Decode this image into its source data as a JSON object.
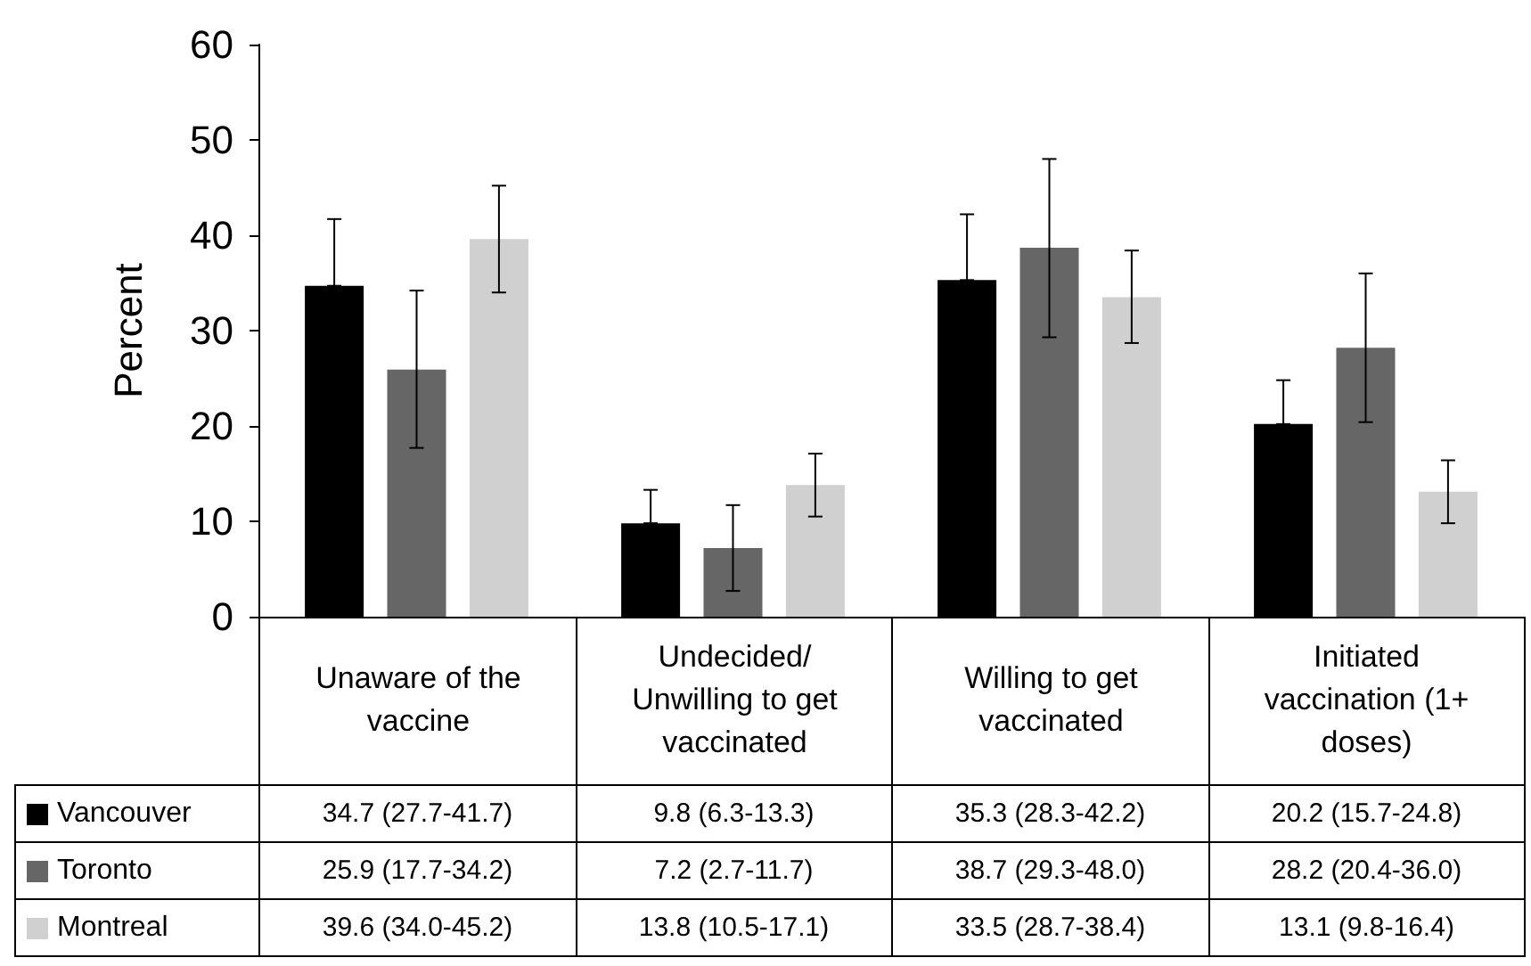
{
  "chart_data": {
    "type": "bar",
    "ylabel": "Percent",
    "categories": [
      "Unaware of the vaccine",
      "Undecided/ Unwilling to get vaccinated",
      "Willing to get vaccinated",
      "Initiated vaccination (1+ doses)"
    ],
    "ylim": [
      0,
      60
    ],
    "yticks": [
      0,
      10,
      20,
      30,
      40,
      50,
      60
    ],
    "grid": false,
    "legend": "bottom",
    "series": [
      {
        "name": "Vancouver",
        "color": "#000000",
        "values": [
          34.7,
          9.8,
          35.3,
          20.2
        ],
        "errors": [
          [
            34.7,
            41.7
          ],
          [
            9.8,
            13.3
          ],
          [
            35.3,
            42.2
          ],
          [
            20.2,
            24.8
          ]
        ],
        "value_labels": [
          "34.7 (27.7-41.7)",
          "9.8 (6.3-13.3)",
          "35.3 (28.3-42.2)",
          "20.2 (15.7-24.8)"
        ]
      },
      {
        "name": "Toronto",
        "color": "#666666",
        "values": [
          25.9,
          7.2,
          38.7,
          28.2
        ],
        "errors": [
          [
            17.7,
            34.2
          ],
          [
            2.7,
            11.7
          ],
          [
            29.3,
            48.0
          ],
          [
            20.4,
            36.0
          ]
        ],
        "value_labels": [
          "25.9 (17.7-34.2)",
          "7.2 (2.7-11.7)",
          "38.7 (29.3-48.0)",
          "28.2 (20.4-36.0)"
        ]
      },
      {
        "name": "Montreal",
        "color": "#d0d0d0",
        "values": [
          39.6,
          13.8,
          33.5,
          13.1
        ],
        "errors": [
          [
            34.0,
            45.2
          ],
          [
            10.5,
            17.1
          ],
          [
            28.7,
            38.4
          ],
          [
            9.8,
            16.4
          ]
        ],
        "value_labels": [
          "39.6 (34.0-45.2)",
          "13.8 (10.5-17.1)",
          "33.5 (28.7-38.4)",
          "13.1 (9.8-16.4)"
        ]
      }
    ]
  }
}
